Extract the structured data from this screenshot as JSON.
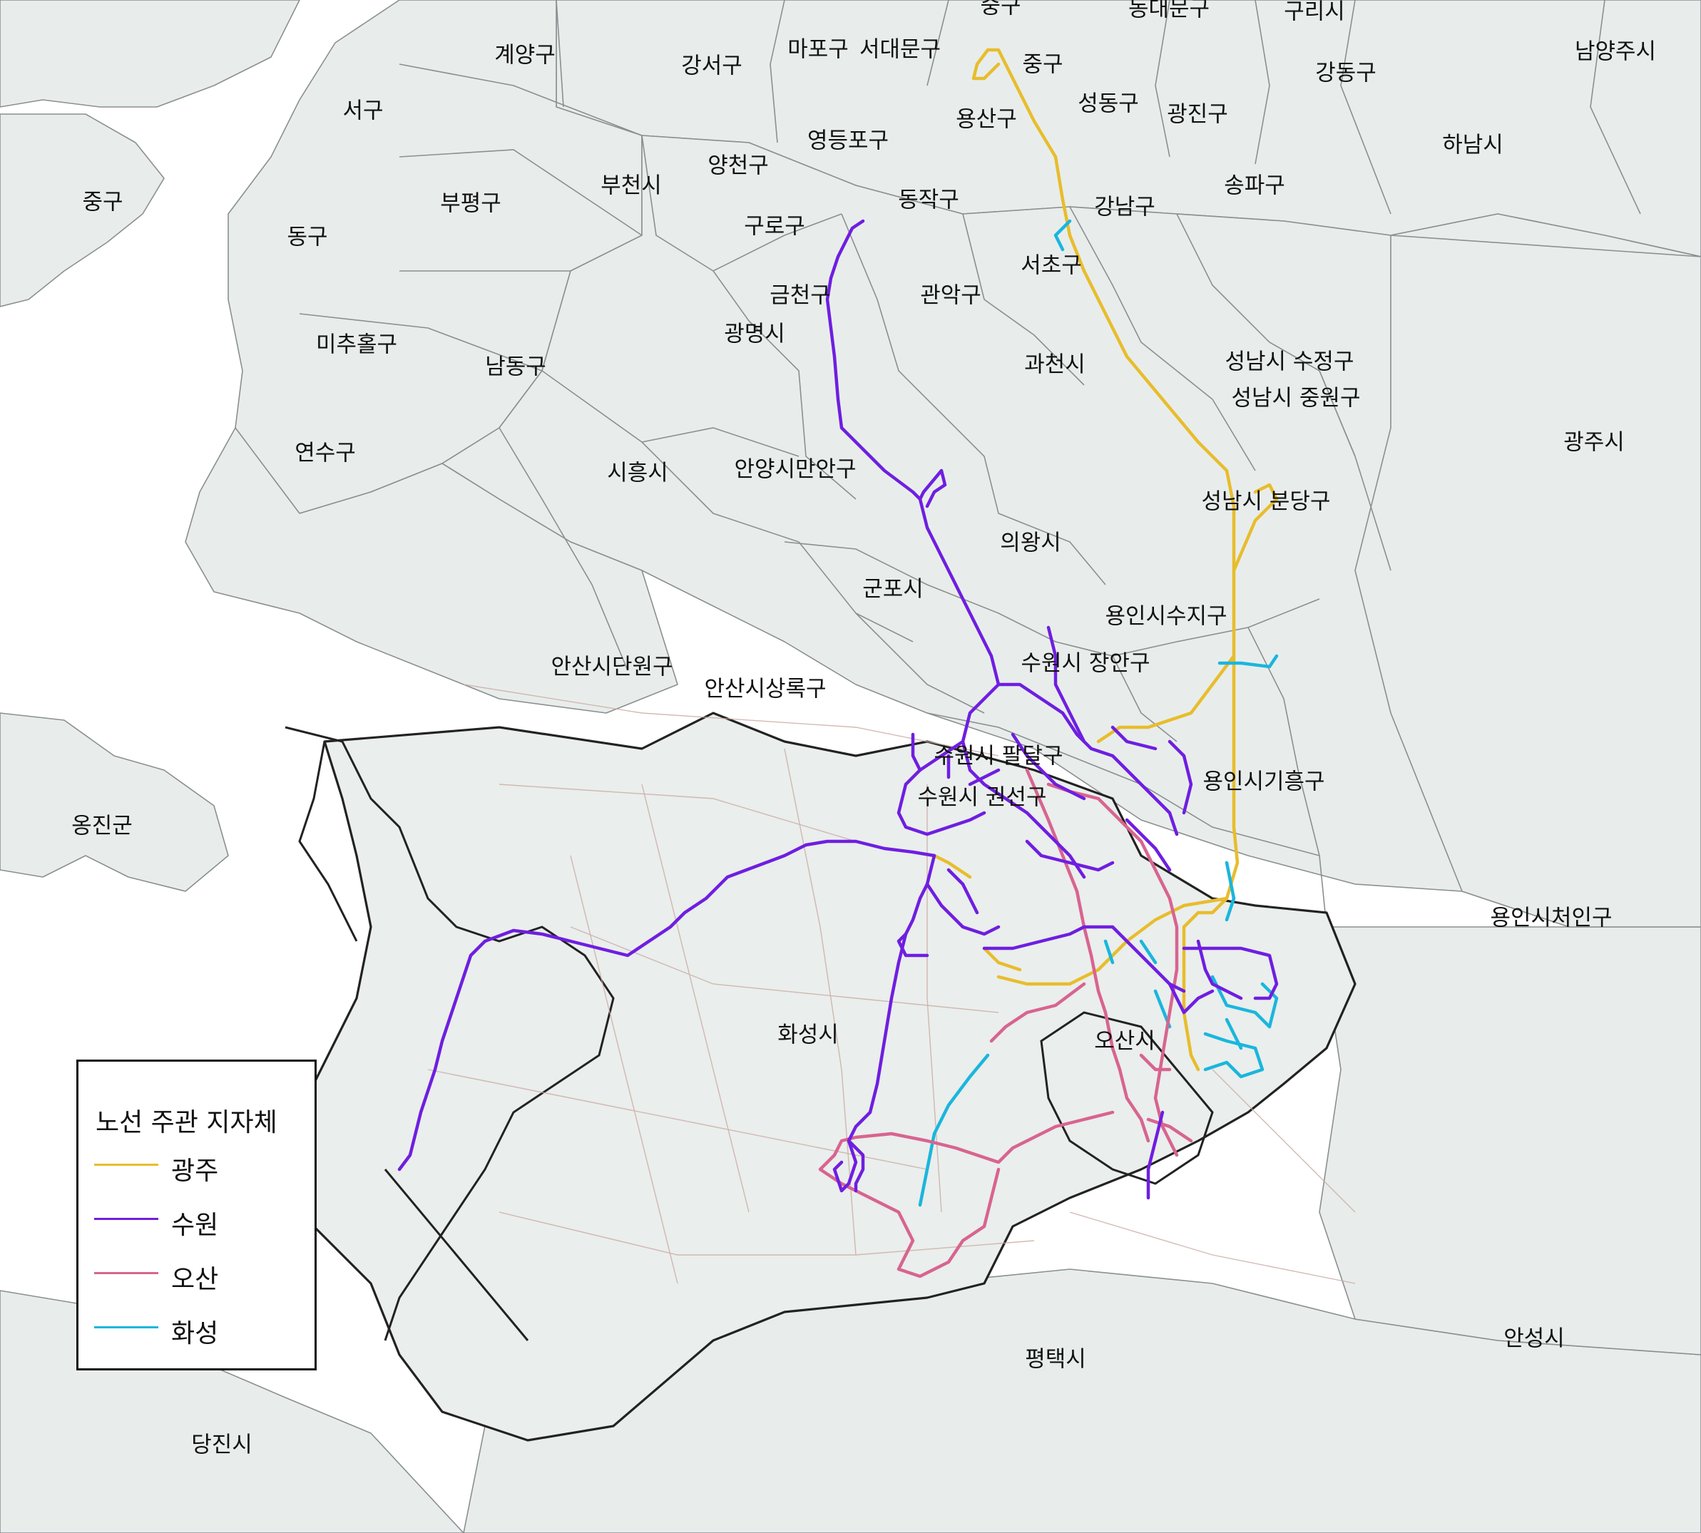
{
  "map": {
    "labels": {
      "jung_north": "중구",
      "dongdaemun": "동대문구",
      "guri": "구리시",
      "namyangju": "남양주시",
      "gyeyang": "계양구",
      "gangseo": "강서구",
      "mapo": "마포구",
      "seodaemun": "서대문구",
      "seo": "서구",
      "yongsan": "용산구",
      "seongdong": "성동구",
      "gwangjin": "광진구",
      "gangdong": "강동구",
      "hanam": "하남시",
      "jung_incheon": "중구",
      "yangcheon": "양천구",
      "yeongdeungpo": "영등포구",
      "bupyeong": "부평구",
      "bucheon": "부천시",
      "dongjak": "동작구",
      "gangnam": "강남구",
      "songpa": "송파구",
      "dong": "동구",
      "guro": "구로구",
      "seocho": "서초구",
      "geumcheon": "금천구",
      "gwanak": "관악구",
      "michuhol": "미추홀구",
      "gwangmyeong": "광명시",
      "namdong": "남동구",
      "gwacheon": "과천시",
      "seongnam_sujeong": "성남시 수정구",
      "seongnam_jungwon": "성남시 중원구",
      "gwangju_city": "광주시",
      "yeonsu": "연수구",
      "siheung": "시흥시",
      "anyang_manan": "안양시만안구",
      "seongnam_bundang": "성남시 분당구",
      "uiwang": "의왕시",
      "gunpo": "군포시",
      "yongin_suji": "용인시수지구",
      "ansan_danwon": "안산시단원구",
      "suwon_jangan": "수원시 장안구",
      "ansan_sangnok": "안산시상록구",
      "suwon_paldal": "수원시 팔달구",
      "yongin_giheung": "용인시기흥구",
      "suwon_gwonseon": "수원시 권선구",
      "ongjin": "옹진군",
      "yongin_cheoin": "용인시처인구",
      "hwaseong": "화성시",
      "osan": "오산시",
      "anseong": "안성시",
      "pyeongtaek": "평택시",
      "dangjin": "당진시"
    }
  },
  "legend": {
    "title": "노선 주관 지자체",
    "items": [
      {
        "label": "광주",
        "color": "#e8bd2c"
      },
      {
        "label": "수원",
        "color": "#6f1ee0"
      },
      {
        "label": "오산",
        "color": "#d8648f"
      },
      {
        "label": "화성",
        "color": "#1ab6dd"
      }
    ]
  },
  "colors": {
    "background": "#ffffff",
    "region_fill": "#e8edec",
    "region_stroke": "#8a8f8f",
    "road": "#c9a9a0",
    "gwangju_route": "#e8bd2c",
    "suwon_route": "#6f1ee0",
    "osan_route": "#d8648f",
    "hwaseong_route": "#1ab6dd"
  }
}
